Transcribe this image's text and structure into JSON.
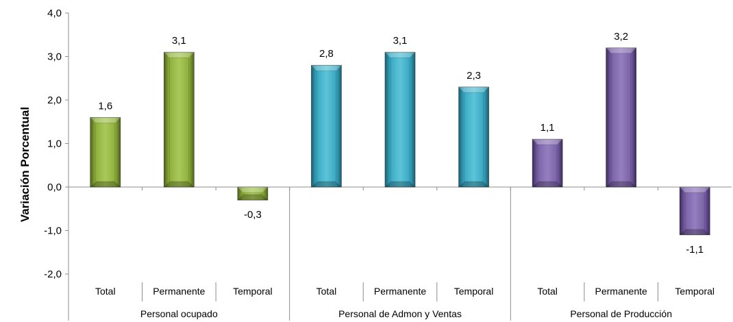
{
  "chart_data": {
    "type": "bar",
    "ylabel": "Variación Porcentual",
    "ylim": [
      -2.0,
      4.0
    ],
    "y_ticks": [
      4.0,
      3.0,
      2.0,
      1.0,
      0.0,
      -1.0,
      -2.0
    ],
    "y_tick_labels": [
      "4,0",
      "3,0",
      "2,0",
      "1,0",
      "0,0",
      "-1,0",
      "-2,0"
    ],
    "grid": false,
    "groups": [
      {
        "name": "Personal ocupado",
        "color": "#8bab3a",
        "bars": [
          {
            "category": "Total",
            "value": 1.6,
            "label": "1,6"
          },
          {
            "category": "Permanente",
            "value": 3.1,
            "label": "3,1"
          },
          {
            "category": "Temporal",
            "value": -0.3,
            "label": "-0,3"
          }
        ]
      },
      {
        "name": "Personal de Admon y Ventas",
        "color": "#3aa8c0",
        "bars": [
          {
            "category": "Total",
            "value": 2.8,
            "label": "2,8"
          },
          {
            "category": "Permanente",
            "value": 3.1,
            "label": "3,1"
          },
          {
            "category": "Temporal",
            "value": 2.3,
            "label": "2,3"
          }
        ]
      },
      {
        "name": "Personal de Producción",
        "color": "#7d63a8",
        "bars": [
          {
            "category": "Total",
            "value": 1.1,
            "label": "1,1"
          },
          {
            "category": "Permanente",
            "value": 3.2,
            "label": "3,2"
          },
          {
            "category": "Temporal",
            "value": -1.1,
            "label": "-1,1"
          }
        ]
      }
    ]
  }
}
